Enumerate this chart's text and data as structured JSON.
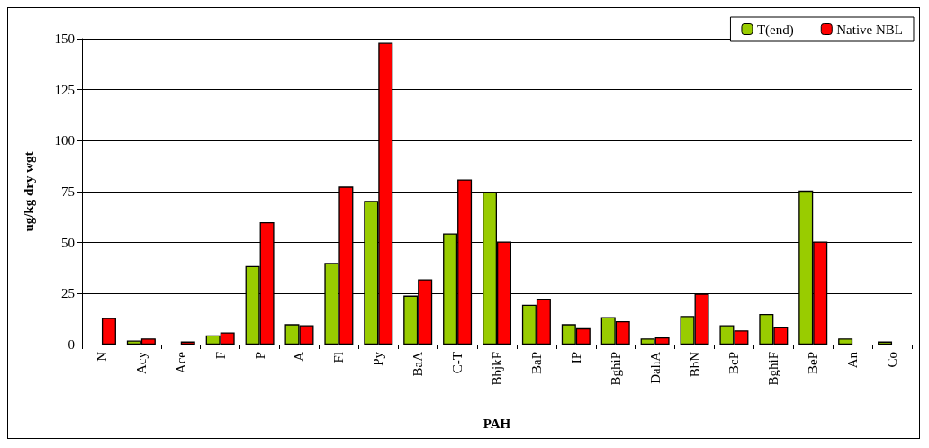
{
  "chart_data": {
    "type": "bar",
    "xlabel": "PAH",
    "ylabel": "ug/kg dry wgt",
    "categories": [
      "N",
      "Acy",
      "Ace",
      "F",
      "P",
      "A",
      "Fl",
      "Py",
      "BaA",
      "C-T",
      "BbjkF",
      "BaP",
      "IP",
      "BghiP",
      "DahA",
      "BbN",
      "BcP",
      "BghiF",
      "BeP",
      "An",
      "Co"
    ],
    "series": [
      {
        "name": "T(end)",
        "color": "#99cc00",
        "values": [
          null,
          2,
          null,
          4.5,
          38.5,
          10,
          40,
          70.5,
          24,
          54.5,
          75,
          19.5,
          10,
          13.5,
          3,
          14,
          9.5,
          15,
          75.5,
          3,
          1.5
        ]
      },
      {
        "name": "Native NBL",
        "color": "#ff0000",
        "values": [
          13,
          3,
          1.5,
          6,
          60,
          9.5,
          77.5,
          148,
          32,
          81,
          50.5,
          22.5,
          8,
          11.5,
          3.5,
          25,
          7,
          8.5,
          50.5,
          null,
          null
        ]
      }
    ],
    "ylim": [
      0,
      150
    ],
    "yticks": [
      0,
      25,
      50,
      75,
      100,
      125,
      150
    ],
    "grid": "y",
    "legend": "top right"
  }
}
